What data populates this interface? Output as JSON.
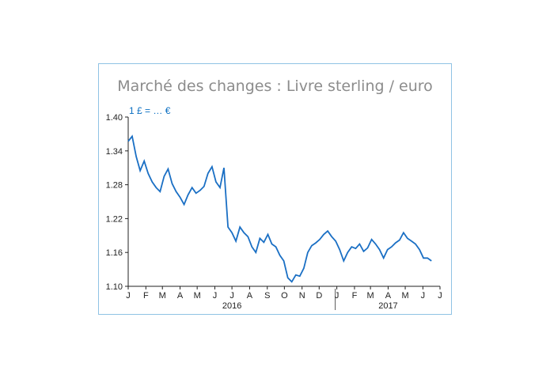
{
  "chart_data": {
    "type": "line",
    "title": "Marché des changes : Livre sterling / euro",
    "unit_label": "1 £ = … €",
    "ylim": [
      1.1,
      1.4
    ],
    "y_ticks": [
      "1.40",
      "1.34",
      "1.28",
      "1.22",
      "1.16",
      "1.10"
    ],
    "x_month_labels": [
      "J",
      "F",
      "M",
      "A",
      "M",
      "J",
      "J",
      "A",
      "S",
      "O",
      "N",
      "D",
      "J",
      "F",
      "M",
      "A",
      "M",
      "J",
      "J"
    ],
    "year_labels": [
      "2016",
      "2017"
    ],
    "line_color": "#1a6fc4",
    "series": [
      {
        "x": [
          "2016-01-01",
          "2016-01-08",
          "2016-01-15",
          "2016-01-22",
          "2016-01-29",
          "2016-02-05",
          "2016-02-12",
          "2016-02-19",
          "2016-02-26",
          "2016-03-04",
          "2016-03-11",
          "2016-03-18",
          "2016-03-25",
          "2016-04-01",
          "2016-04-08",
          "2016-04-15",
          "2016-04-22",
          "2016-04-29",
          "2016-05-06",
          "2016-05-13",
          "2016-05-20",
          "2016-05-27",
          "2016-06-03",
          "2016-06-10",
          "2016-06-17",
          "2016-06-24",
          "2016-07-01",
          "2016-07-08",
          "2016-07-15",
          "2016-07-22",
          "2016-07-29",
          "2016-08-05",
          "2016-08-12",
          "2016-08-19",
          "2016-08-26",
          "2016-09-02",
          "2016-09-09",
          "2016-09-16",
          "2016-09-23",
          "2016-09-30",
          "2016-10-07",
          "2016-10-14",
          "2016-10-21",
          "2016-10-28",
          "2016-11-04",
          "2016-11-11",
          "2016-11-18",
          "2016-11-25",
          "2016-12-02",
          "2016-12-09",
          "2016-12-16",
          "2016-12-23",
          "2016-12-30",
          "2017-01-06",
          "2017-01-13",
          "2017-01-20",
          "2017-01-27",
          "2017-02-03",
          "2017-02-10",
          "2017-02-17",
          "2017-02-24",
          "2017-03-03",
          "2017-03-10",
          "2017-03-17",
          "2017-03-24",
          "2017-03-31",
          "2017-04-07",
          "2017-04-14",
          "2017-04-21",
          "2017-04-28",
          "2017-05-05",
          "2017-05-12",
          "2017-05-19",
          "2017-05-26",
          "2017-06-02",
          "2017-06-09",
          "2017-06-16"
        ],
        "values": [
          1.357,
          1.366,
          1.33,
          1.305,
          1.322,
          1.3,
          1.285,
          1.275,
          1.268,
          1.295,
          1.308,
          1.282,
          1.268,
          1.258,
          1.245,
          1.262,
          1.275,
          1.265,
          1.27,
          1.277,
          1.3,
          1.312,
          1.285,
          1.275,
          1.31,
          1.205,
          1.195,
          1.18,
          1.205,
          1.195,
          1.188,
          1.17,
          1.16,
          1.185,
          1.178,
          1.192,
          1.175,
          1.17,
          1.155,
          1.145,
          1.115,
          1.108,
          1.12,
          1.118,
          1.132,
          1.16,
          1.172,
          1.177,
          1.183,
          1.192,
          1.198,
          1.188,
          1.18,
          1.165,
          1.145,
          1.16,
          1.17,
          1.167,
          1.175,
          1.162,
          1.168,
          1.183,
          1.175,
          1.165,
          1.15,
          1.165,
          1.17,
          1.177,
          1.182,
          1.195,
          1.185,
          1.18,
          1.175,
          1.165,
          1.15,
          1.15,
          1.145
        ]
      }
    ],
    "grid": false
  }
}
